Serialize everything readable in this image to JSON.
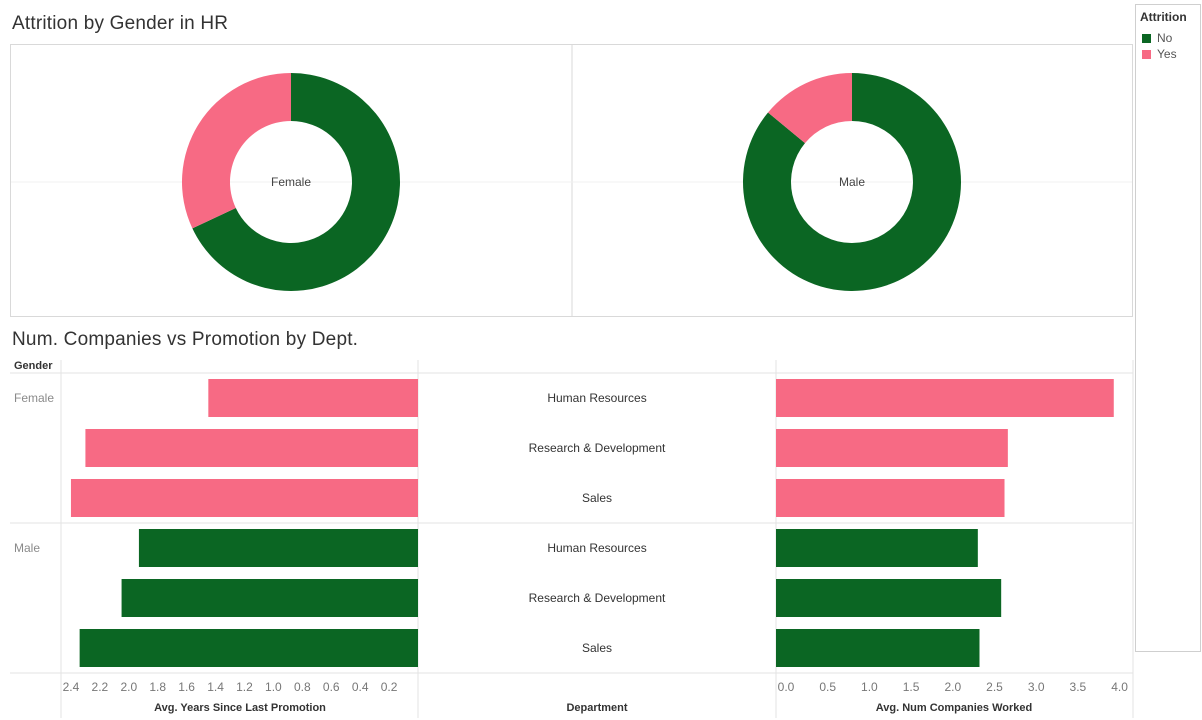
{
  "colors": {
    "no": "#0b6623",
    "yes": "#f76a84"
  },
  "legend": {
    "title": "Attrition",
    "items": [
      {
        "label": "No",
        "color": "#0b6623"
      },
      {
        "label": "Yes",
        "color": "#f76a84"
      }
    ]
  },
  "chart_data": [
    {
      "type": "pie",
      "title": "Attrition by Gender in HR",
      "subplots": [
        {
          "label": "Female",
          "slices": [
            {
              "name": "No",
              "value": 68
            },
            {
              "name": "Yes",
              "value": 32
            }
          ]
        },
        {
          "label": "Male",
          "slices": [
            {
              "name": "No",
              "value": 86
            },
            {
              "name": "Yes",
              "value": 14
            }
          ]
        }
      ]
    },
    {
      "type": "bar",
      "title": "Num. Companies vs Promotion by Dept.",
      "row_header": "Gender",
      "dimension_label": "Department",
      "rows": [
        {
          "gender": "Female",
          "department": "Human Resources",
          "attrition": "Yes",
          "years_since_promotion": 1.45,
          "num_companies": 4.05
        },
        {
          "gender": "Female",
          "department": "Research & Development",
          "attrition": "Yes",
          "years_since_promotion": 2.3,
          "num_companies": 2.78
        },
        {
          "gender": "Female",
          "department": "Sales",
          "attrition": "Yes",
          "years_since_promotion": 2.4,
          "num_companies": 2.74
        },
        {
          "gender": "Male",
          "department": "Human Resources",
          "attrition": "No",
          "years_since_promotion": 1.93,
          "num_companies": 2.42
        },
        {
          "gender": "Male",
          "department": "Research & Development",
          "attrition": "No",
          "years_since_promotion": 2.05,
          "num_companies": 2.7
        },
        {
          "gender": "Male",
          "department": "Sales",
          "attrition": "No",
          "years_since_promotion": 2.34,
          "num_companies": 2.44
        }
      ],
      "left_axis": {
        "label": "Avg. Years Since Last Promotion",
        "range": [
          0,
          2.5
        ],
        "reversed": true,
        "ticks": [
          2.4,
          2.2,
          2.0,
          1.8,
          1.6,
          1.4,
          1.2,
          1.0,
          0.8,
          0.6,
          0.4,
          0.2
        ],
        "tick_labels": [
          "2.4",
          "2.2",
          "2.0",
          "1.8",
          "1.6",
          "1.4",
          "1.2",
          "1.0",
          "0.8",
          "0.6",
          "0.4",
          "0.2"
        ]
      },
      "right_axis": {
        "label": "Avg. Num Companies Worked",
        "range": [
          0,
          4.1
        ],
        "ticks": [
          0,
          0.5,
          1,
          1.5,
          2,
          2.5,
          3,
          3.5,
          4
        ],
        "tick_labels": [
          "0.0",
          "0.5",
          "1.0",
          "1.5",
          "2.0",
          "2.5",
          "3.0",
          "3.5",
          "4.0"
        ]
      }
    }
  ]
}
